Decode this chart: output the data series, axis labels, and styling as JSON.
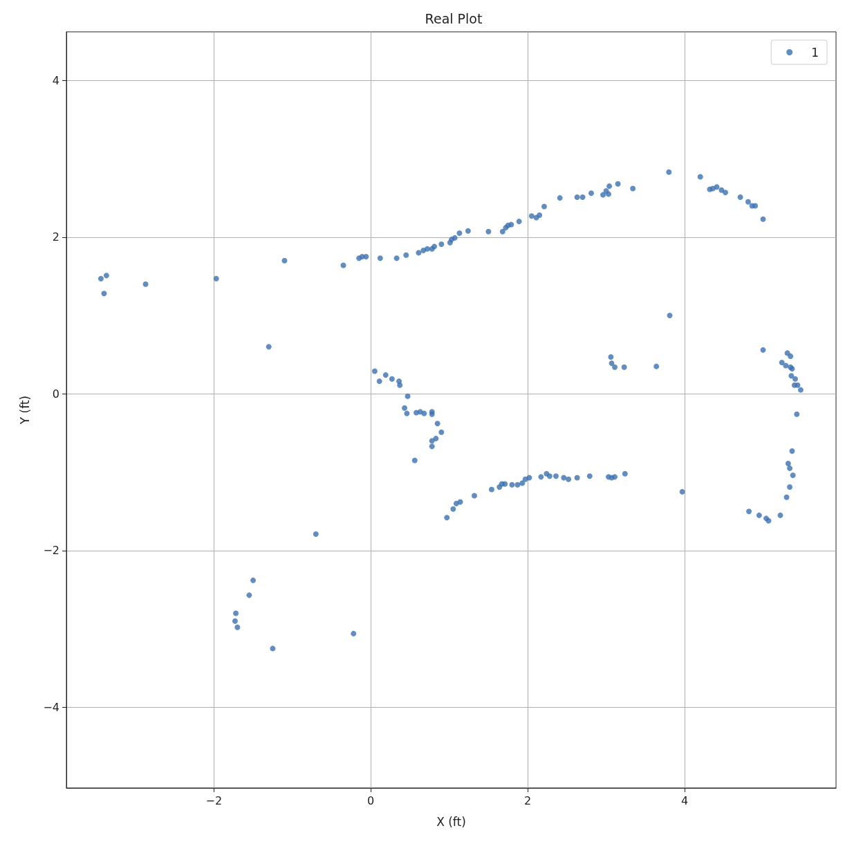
{
  "chart_data": {
    "type": "scatter",
    "title": "Real Plot",
    "xlabel": "X (ft)",
    "ylabel": "Y (ft)",
    "xlim": [
      -3.88,
      5.93
    ],
    "ylim": [
      -5.03,
      4.62
    ],
    "xticks": [
      {
        "value": -2,
        "label": "−2"
      },
      0,
      2,
      4
    ],
    "yticks": [
      {
        "value": -4,
        "label": "−4"
      },
      {
        "value": -2,
        "label": "−2"
      },
      0,
      2,
      4
    ],
    "grid": true,
    "legend": "top right",
    "marker": "circle",
    "series": [
      {
        "name": "1",
        "color": "#3a70b0",
        "x": [
          -3.44,
          -3.37,
          -3.4,
          -2.87,
          -1.97,
          -1.1,
          -0.35,
          -0.15,
          -0.11,
          -0.06,
          0.12,
          0.33,
          0.45,
          0.61,
          0.67,
          0.72,
          0.78,
          0.81,
          0.9,
          1.01,
          1.03,
          1.07,
          1.13,
          1.24,
          1.5,
          1.68,
          1.72,
          1.75,
          1.79,
          1.89,
          2.05,
          2.11,
          2.15,
          2.21,
          2.41,
          2.63,
          2.7,
          2.81,
          2.96,
          3.0,
          3.04,
          3.03,
          3.15,
          3.34,
          3.8,
          4.2,
          4.32,
          4.36,
          4.41,
          4.47,
          4.52,
          4.71,
          4.81,
          4.86,
          4.9,
          5.0,
          -1.3,
          0.05,
          0.19,
          0.11,
          0.27,
          0.36,
          0.37,
          0.47,
          0.43,
          0.46,
          0.58,
          0.63,
          0.68,
          0.78,
          0.78,
          0.85,
          0.9,
          0.83,
          0.78,
          0.78,
          0.56,
          -0.7,
          -1.5,
          -1.55,
          -1.72,
          -1.73,
          -1.7,
          -1.25,
          -0.22,
          0.97,
          1.05,
          1.09,
          1.14,
          1.32,
          1.54,
          1.64,
          1.67,
          1.71,
          1.8,
          1.87,
          1.93,
          1.97,
          2.02,
          2.17,
          2.24,
          2.28,
          2.36,
          2.46,
          2.52,
          2.63,
          2.79,
          3.03,
          3.07,
          3.11,
          3.24,
          3.06,
          3.07,
          3.11,
          3.23,
          3.64,
          3.81,
          3.97,
          5.0,
          5.24,
          5.29,
          5.31,
          5.35,
          5.35,
          5.37,
          5.36,
          5.41,
          5.4,
          5.44,
          5.48,
          5.43,
          5.37,
          5.32,
          5.34,
          5.38,
          5.34,
          5.3,
          5.22,
          5.07,
          5.04,
          4.95,
          4.82
        ],
        "values": [
          1.47,
          1.51,
          1.28,
          1.4,
          1.47,
          1.7,
          1.64,
          1.73,
          1.75,
          1.75,
          1.73,
          1.73,
          1.77,
          1.8,
          1.83,
          1.85,
          1.85,
          1.88,
          1.91,
          1.93,
          1.97,
          1.99,
          2.05,
          2.08,
          2.07,
          2.07,
          2.12,
          2.15,
          2.16,
          2.2,
          2.27,
          2.25,
          2.28,
          2.39,
          2.5,
          2.51,
          2.51,
          2.56,
          2.54,
          2.59,
          2.65,
          2.55,
          2.68,
          2.62,
          2.83,
          2.77,
          2.61,
          2.62,
          2.64,
          2.6,
          2.57,
          2.51,
          2.45,
          2.4,
          2.4,
          2.23,
          0.6,
          0.29,
          0.24,
          0.16,
          0.19,
          0.16,
          0.11,
          -0.03,
          -0.18,
          -0.25,
          -0.24,
          -0.23,
          -0.25,
          -0.23,
          -0.26,
          -0.38,
          -0.49,
          -0.57,
          -0.6,
          -0.67,
          -0.85,
          -1.79,
          -2.38,
          -2.57,
          -2.8,
          -2.9,
          -2.98,
          -3.25,
          -3.06,
          -1.58,
          -1.47,
          -1.4,
          -1.38,
          -1.3,
          -1.22,
          -1.19,
          -1.15,
          -1.15,
          -1.16,
          -1.16,
          -1.14,
          -1.09,
          -1.07,
          -1.06,
          -1.02,
          -1.05,
          -1.05,
          -1.07,
          -1.09,
          -1.07,
          -1.05,
          -1.06,
          -1.07,
          -1.06,
          -1.02,
          0.47,
          0.39,
          0.34,
          0.34,
          0.35,
          1.0,
          -1.25,
          0.56,
          0.4,
          0.36,
          0.52,
          0.48,
          0.34,
          0.32,
          0.23,
          0.19,
          0.11,
          0.11,
          0.05,
          -0.26,
          -0.73,
          -0.89,
          -0.95,
          -1.04,
          -1.19,
          -1.32,
          -1.55,
          -1.62,
          -1.59,
          -1.55,
          -1.5
        ]
      }
    ]
  }
}
